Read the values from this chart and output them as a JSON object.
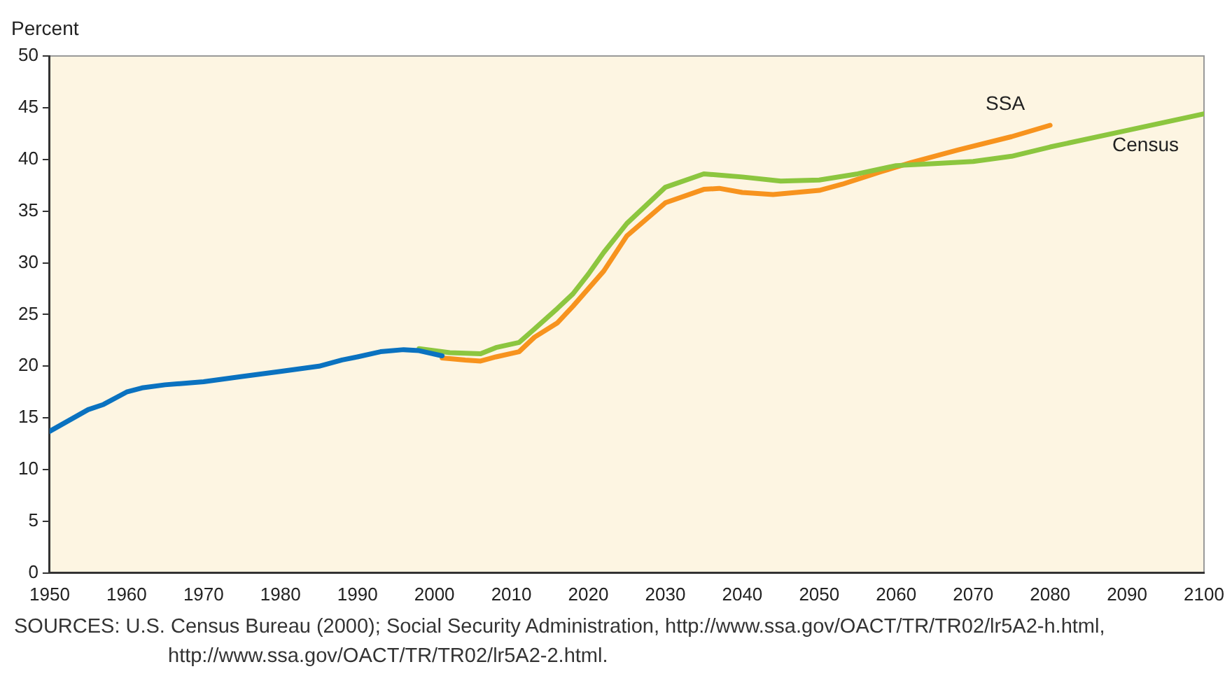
{
  "chart_data": {
    "type": "line",
    "ylabel": "Percent",
    "xlim": [
      1950,
      2100
    ],
    "xticks": [
      1950,
      1960,
      1970,
      1980,
      1990,
      2000,
      2010,
      2020,
      2030,
      2040,
      2050,
      2060,
      2070,
      2080,
      2090,
      2100
    ],
    "ylim": [
      0,
      50
    ],
    "yticks": [
      0,
      5,
      10,
      15,
      20,
      25,
      30,
      35,
      40,
      45,
      50
    ],
    "grid": false,
    "legend": false,
    "marker": "none",
    "line_style": "solid",
    "series": [
      {
        "color": "#0a72c0",
        "x": [
          1950,
          1955,
          1957,
          1960,
          1962,
          1965,
          1970,
          1975,
          1980,
          1985,
          1988,
          1990,
          1993,
          1996,
          1998,
          2001
        ],
        "values": [
          13.7,
          15.8,
          16.3,
          17.5,
          17.9,
          18.2,
          18.5,
          19,
          19.5,
          20,
          20.6,
          20.9,
          21.4,
          21.6,
          21.5,
          21.0
        ]
      },
      {
        "name": "Census",
        "color": "#8cc63f",
        "x": [
          1998,
          2002,
          2006,
          2008,
          2011,
          2013,
          2016,
          2018,
          2020,
          2022,
          2025,
          2030,
          2035,
          2040,
          2045,
          2050,
          2055,
          2060,
          2065,
          2070,
          2075,
          2080,
          2090,
          2100
        ],
        "values": [
          21.7,
          21.3,
          21.2,
          21.8,
          22.3,
          23.6,
          25.6,
          27.0,
          28.9,
          31.0,
          33.8,
          37.3,
          38.6,
          38.3,
          37.9,
          38.0,
          38.6,
          39.4,
          39.6,
          39.8,
          40.3,
          41.2,
          42.8,
          44.4
        ]
      },
      {
        "name": "SSA",
        "color": "#f7931e",
        "x": [
          2001,
          2004,
          2006,
          2008,
          2011,
          2013,
          2016,
          2018,
          2022,
          2025,
          2030,
          2035,
          2037,
          2040,
          2044,
          2050,
          2053,
          2058,
          2062,
          2068,
          2075,
          2080
        ],
        "values": [
          20.8,
          20.6,
          20.5,
          20.9,
          21.4,
          22.8,
          24.2,
          25.8,
          29.2,
          32.6,
          35.8,
          37.1,
          37.2,
          36.8,
          36.6,
          37.0,
          37.6,
          38.8,
          39.7,
          40.9,
          42.2,
          43.3
        ]
      }
    ],
    "annotations": [
      "SOURCES: U.S. Census Bureau (2000); Social Security Administration, http://www.ssa.gov/OACT/TR/TR02/lr5A2-h.html, http://www.ssa.gov/OACT/TR/TR02/lr5A2-2.html."
    ]
  }
}
